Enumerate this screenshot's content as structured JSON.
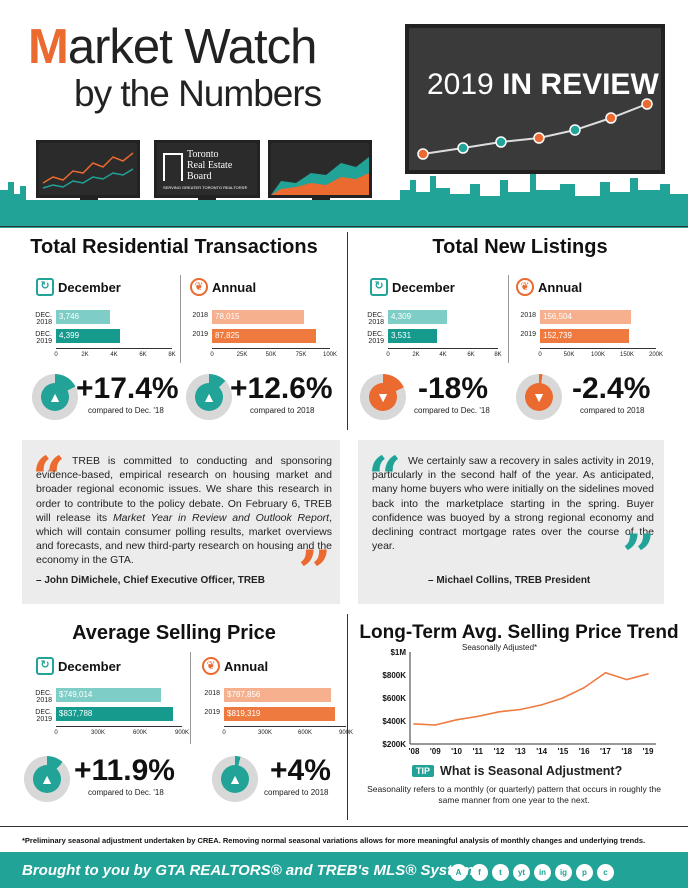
{
  "header": {
    "title_first_letter": "M",
    "title_rest": "arket Watch",
    "title_line2": "by the Numbers",
    "screen_text_light": "2019 ",
    "screen_text_bold": "IN REVIEW",
    "treb_name_line1": "Toronto",
    "treb_name_line2": "Real Estate",
    "treb_name_line3": "Board",
    "treb_tagline": "SERVING GREATER TORONTO REALTORS®"
  },
  "transactions": {
    "title": "Total Residential Transactions",
    "december": {
      "label": "December",
      "rows": [
        {
          "label_a": "DEC.",
          "label_b": "2018",
          "value_text": "3,746",
          "value": 3746
        },
        {
          "label_a": "DEC.",
          "label_b": "2019",
          "value_text": "4,399",
          "value": 4399
        }
      ],
      "axis": [
        "0",
        "2K",
        "4K",
        "6K",
        "8K"
      ],
      "max": 8000,
      "pct": "+17.4%",
      "compare": "compared to Dec. '18"
    },
    "annual": {
      "label": "Annual",
      "rows": [
        {
          "label_b": "2018",
          "value_text": "78,015",
          "value": 78015
        },
        {
          "label_b": "2019",
          "value_text": "87,825",
          "value": 87825
        }
      ],
      "axis": [
        "0",
        "25K",
        "50K",
        "75K",
        "100K"
      ],
      "max": 100000,
      "pct": "+12.6%",
      "compare": "compared to 2018"
    }
  },
  "listings": {
    "title": "Total New Listings",
    "december": {
      "label": "December",
      "rows": [
        {
          "label_a": "DEC.",
          "label_b": "2018",
          "value_text": "4,309",
          "value": 4309
        },
        {
          "label_a": "DEC.",
          "label_b": "2019",
          "value_text": "3,531",
          "value": 3531
        }
      ],
      "axis": [
        "0",
        "2K",
        "4K",
        "6K",
        "8K"
      ],
      "max": 8000,
      "pct": "-18%",
      "compare": "compared to Dec. '18"
    },
    "annual": {
      "label": "Annual",
      "rows": [
        {
          "label_b": "2018",
          "value_text": "156,504",
          "value": 156504
        },
        {
          "label_b": "2019",
          "value_text": "152,739",
          "value": 152739
        }
      ],
      "axis": [
        "0",
        "50K",
        "100K",
        "150K",
        "200K"
      ],
      "max": 200000,
      "pct": "-2.4%",
      "compare": "compared to 2018"
    }
  },
  "quote1": {
    "text_a": "TREB is committed to conducting and sponsoring evidence-based, empirical research on housing market and broader regional economic issues. We share this research in order to contribute to the policy debate. On February 6, TREB will release its ",
    "text_italic": "Market Year in Review and Outlook Report",
    "text_b": ", which will contain consumer polling results, market overviews and forecasts, and new third-party research on housing and the economy in the GTA.",
    "author": "– John DiMichele, Chief Executive Officer, TREB"
  },
  "quote2": {
    "text": "We certainly saw a recovery in sales activity in 2019, particularly in the second half of the year. As anticipated, many home buyers who were initially on the sidelines moved back into the marketplace starting in the spring. Buyer confidence was buoyed by a strong regional economy and declining contract mortgage rates over the course of the year.",
    "author": "– Michael Collins, TREB President"
  },
  "price": {
    "title": "Average Selling Price",
    "december": {
      "label": "December",
      "rows": [
        {
          "label_a": "DEC.",
          "label_b": "2018",
          "value_text": "$749,014",
          "value": 749014
        },
        {
          "label_a": "DEC.",
          "label_b": "2019",
          "value_text": "$837,788",
          "value": 837788
        }
      ],
      "axis": [
        "0",
        "300K",
        "600K",
        "900K"
      ],
      "max": 900000,
      "pct": "+11.9%",
      "compare": "compared to Dec. '18"
    },
    "annual": {
      "label": "Annual",
      "rows": [
        {
          "label_b": "2018",
          "value_text": "$787,856",
          "value": 787856
        },
        {
          "label_b": "2019",
          "value_text": "$819,319",
          "value": 819319
        }
      ],
      "axis": [
        "0",
        "300K",
        "600K",
        "900K"
      ],
      "max": 900000,
      "pct": "+4%",
      "compare": "compared to 2018"
    }
  },
  "trend": {
    "title": "Long-Term Avg. Selling Price Trend",
    "subtitle": "Seasonally Adjusted*",
    "tip_badge": "TIP",
    "tip_title": "What is Seasonal Adjustment?",
    "tip_text": "Seasonality refers to a monthly (or quarterly) pattern that occurs in roughly the same manner from one year to the next."
  },
  "chart_data": {
    "type": "line",
    "title": "Long-Term Avg. Selling Price Trend",
    "subtitle": "Seasonally Adjusted*",
    "x": [
      "'08",
      "'09",
      "'10",
      "'11",
      "'12",
      "'13",
      "'14",
      "'15",
      "'16",
      "'17",
      "'18",
      "'19"
    ],
    "ytick_labels": [
      "$200K",
      "$400K",
      "$600K",
      "$800K",
      "$1M"
    ],
    "ylim": [
      200000,
      1000000
    ],
    "series": [
      {
        "values": [
          375000,
          365000,
          410000,
          440000,
          480000,
          500000,
          540000,
          600000,
          690000,
          820000,
          760000,
          810000
        ]
      }
    ],
    "color": "#ef7a3f",
    "grid": false
  },
  "footnote": "*Preliminary seasonal adjustment undertaken by CREA. Removing normal seasonal variations allows for more meaningful analysis of monthly changes and underlying trends.",
  "footer": {
    "text": "Brought to you by GTA REALTORS® and TREB's MLS® System",
    "social": [
      "A",
      "f",
      "t",
      "yt",
      "in",
      "ig",
      "p",
      "c"
    ]
  },
  "colors": {
    "teal": "#21a398",
    "orange": "#ea6a2f",
    "dark": "#333333"
  }
}
